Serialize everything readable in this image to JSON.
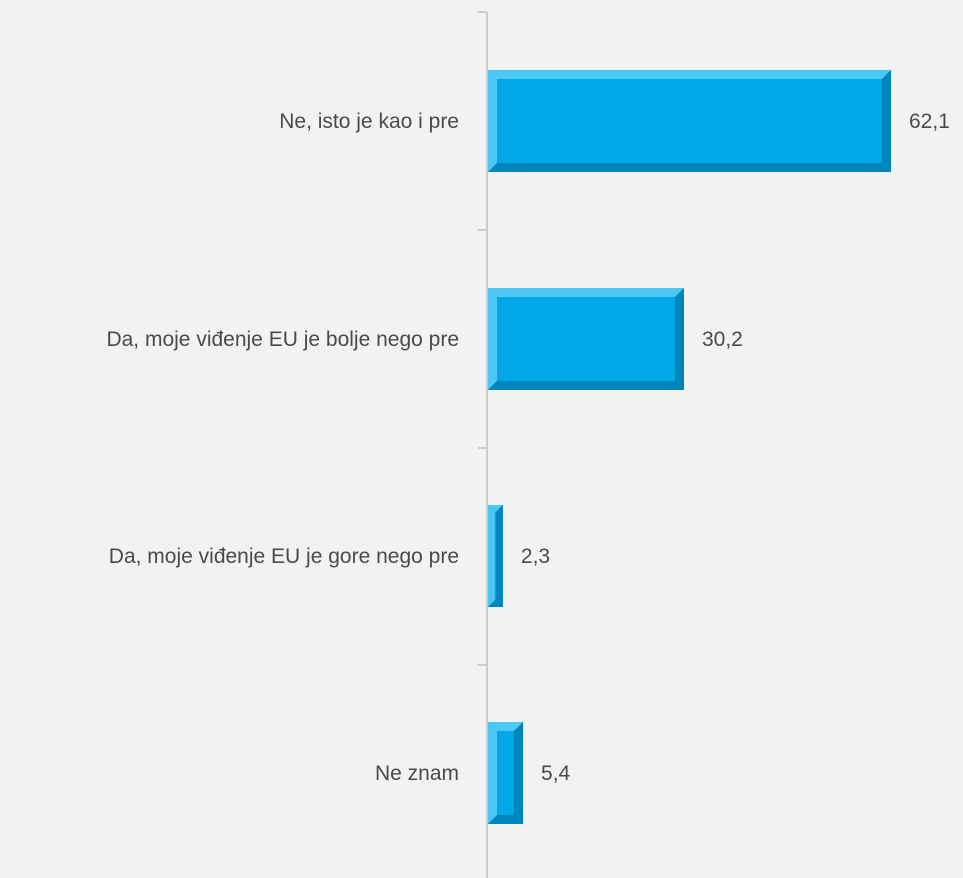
{
  "chart_data": {
    "type": "bar",
    "orientation": "horizontal",
    "categories": [
      "Ne, isto je kao i pre",
      "Da, moje viđenje EU je bolje nego pre",
      "Da, moje viđenje EU je gore nego pre",
      "Ne znam"
    ],
    "values": [
      62.1,
      30.2,
      2.3,
      5.4
    ],
    "value_labels": [
      "62,1",
      "30,2",
      "2,3",
      "5,4"
    ],
    "title": "",
    "xlabel": "",
    "ylabel": "",
    "xlim": [
      0,
      66
    ],
    "grid": false,
    "legend": "none",
    "colors": {
      "bar": "#00a8e6",
      "bar_light": "#4cc8f4",
      "bar_dark": "#0086bb",
      "axis": "#bfbfbf",
      "text": "#4a4a4a",
      "background": "#f2f2f2"
    }
  }
}
